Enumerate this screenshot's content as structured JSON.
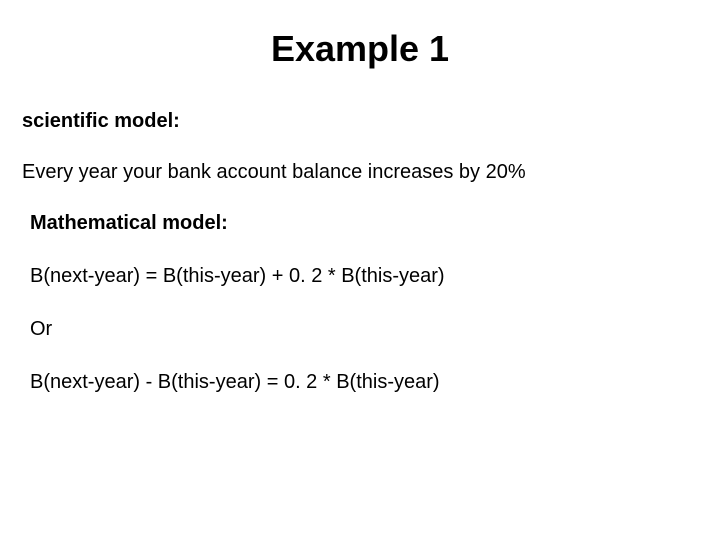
{
  "title": "Example 1",
  "section1": {
    "heading": "scientific model:",
    "text": "Every year your bank account balance increases by 20%"
  },
  "section2": {
    "heading": "Mathematical model:",
    "equation1": "B(next-year) = B(this-year) + 0. 2 * B(this-year)",
    "or": "Or",
    "equation2": "B(next-year) - B(this-year) = 0. 2 * B(this-year)"
  },
  "styling": {
    "background_color": "#ffffff",
    "text_color": "#000000",
    "title_fontsize": 36,
    "heading_fontsize": 20,
    "body_fontsize": 20,
    "font_family": "Arial"
  }
}
